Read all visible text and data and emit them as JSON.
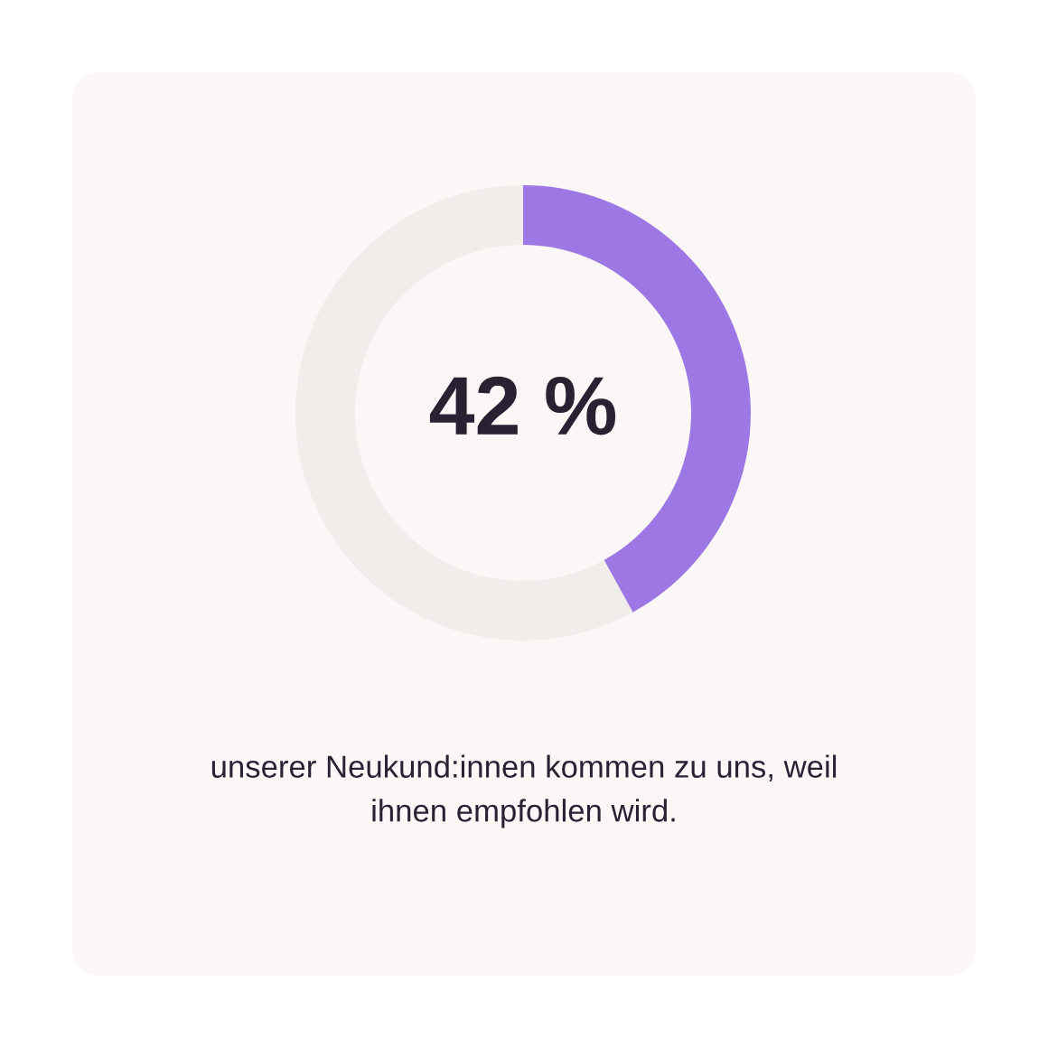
{
  "chart_data": {
    "type": "donut",
    "categories": [
      null,
      null
    ],
    "values": [
      42,
      58
    ],
    "colors": [
      "#9d78e4",
      "#f1edeb"
    ],
    "annotations": [
      "42 %",
      "unserer Neukund:innen kommen zu uns, weil\nihnen empfohlen wird."
    ]
  }
}
